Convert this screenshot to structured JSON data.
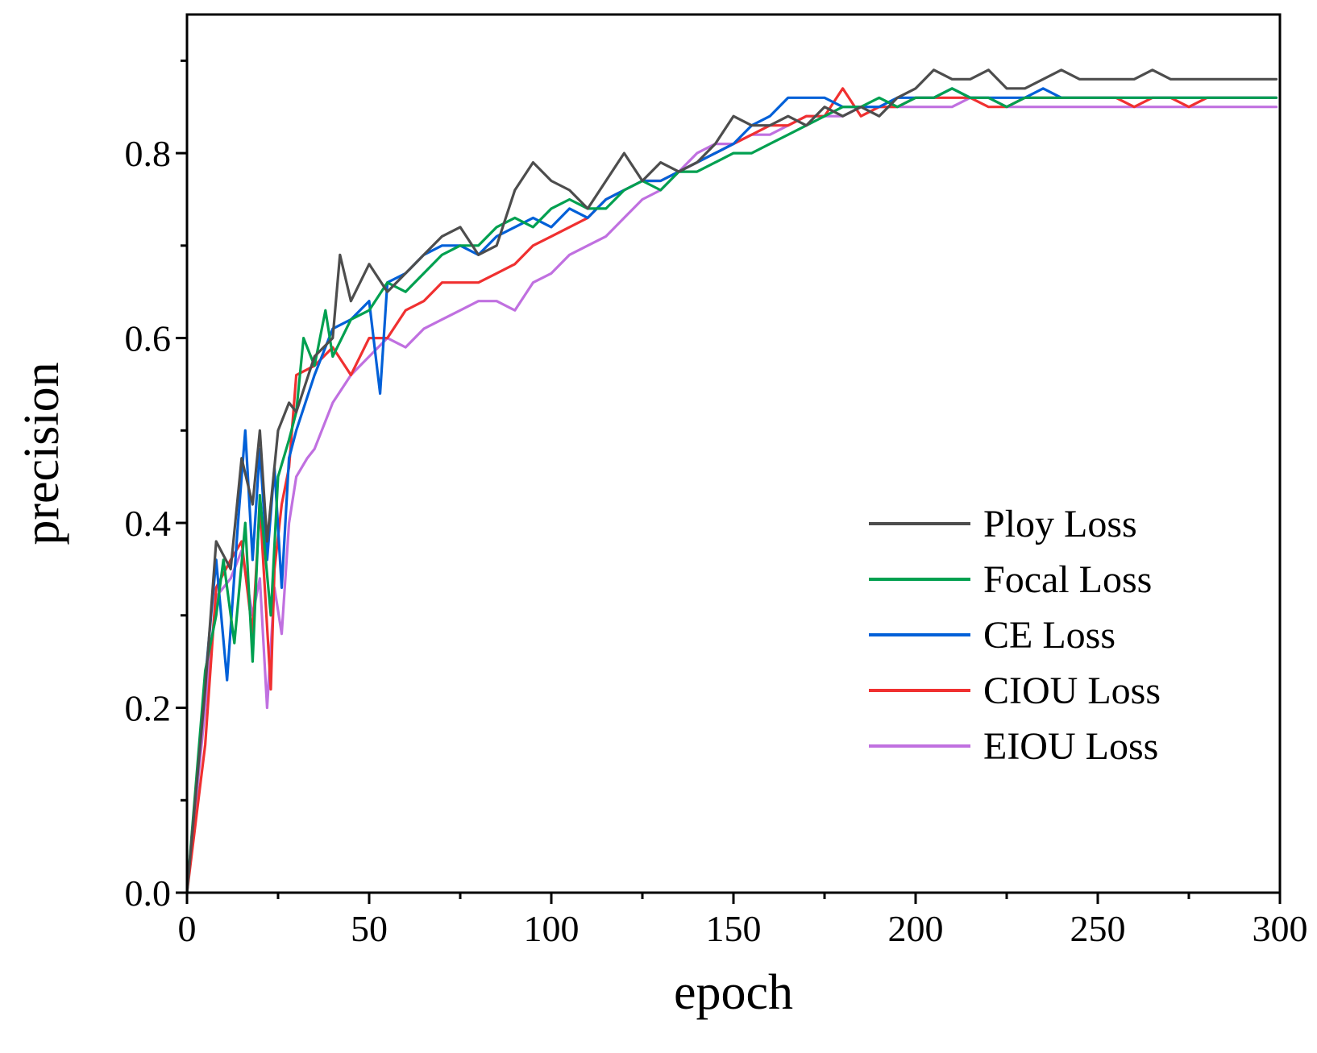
{
  "chart_data": {
    "type": "line",
    "title": "",
    "xlabel": "epoch",
    "ylabel": "precision",
    "xlim": [
      0,
      300
    ],
    "ylim": [
      0,
      0.95
    ],
    "xticks": [
      0,
      50,
      100,
      150,
      200,
      250,
      300
    ],
    "xtick_labels": [
      "0",
      "50",
      "100",
      "150",
      "200",
      "250",
      "300"
    ],
    "yticks": [
      0.0,
      0.2,
      0.4,
      0.6,
      0.8
    ],
    "ytick_labels": [
      "0.0",
      "0.2",
      "0.4",
      "0.6",
      "0.8"
    ],
    "grid": false,
    "legend_position": "center-right",
    "series": [
      {
        "name": "Ploy Loss",
        "color": "#4d4d4d",
        "x": [
          0,
          5,
          8,
          12,
          15,
          18,
          20,
          22,
          25,
          28,
          30,
          35,
          40,
          42,
          45,
          50,
          55,
          60,
          65,
          70,
          75,
          80,
          85,
          90,
          95,
          100,
          105,
          110,
          115,
          120,
          125,
          130,
          135,
          140,
          145,
          150,
          155,
          160,
          165,
          170,
          175,
          180,
          185,
          190,
          195,
          200,
          205,
          210,
          215,
          220,
          225,
          230,
          235,
          240,
          245,
          250,
          255,
          260,
          265,
          270,
          275,
          280,
          285,
          290,
          295,
          299
        ],
        "values": [
          0.0,
          0.22,
          0.38,
          0.35,
          0.47,
          0.42,
          0.5,
          0.38,
          0.5,
          0.53,
          0.52,
          0.58,
          0.6,
          0.69,
          0.64,
          0.68,
          0.65,
          0.67,
          0.69,
          0.71,
          0.72,
          0.69,
          0.7,
          0.76,
          0.79,
          0.77,
          0.76,
          0.74,
          0.77,
          0.8,
          0.77,
          0.79,
          0.78,
          0.79,
          0.81,
          0.84,
          0.83,
          0.83,
          0.84,
          0.83,
          0.85,
          0.84,
          0.85,
          0.84,
          0.86,
          0.87,
          0.89,
          0.88,
          0.88,
          0.89,
          0.87,
          0.87,
          0.88,
          0.89,
          0.88,
          0.88,
          0.88,
          0.88,
          0.89,
          0.88,
          0.88,
          0.88,
          0.88,
          0.88,
          0.88,
          0.88
        ]
      },
      {
        "name": "Focal Loss",
        "color": "#00a050",
        "x": [
          0,
          5,
          8,
          10,
          13,
          16,
          18,
          20,
          23,
          25,
          28,
          30,
          32,
          35,
          38,
          40,
          45,
          50,
          55,
          60,
          65,
          70,
          75,
          80,
          85,
          90,
          95,
          100,
          105,
          110,
          115,
          120,
          125,
          130,
          135,
          140,
          145,
          150,
          155,
          160,
          165,
          170,
          175,
          180,
          185,
          190,
          195,
          200,
          205,
          210,
          215,
          220,
          225,
          230,
          235,
          240,
          245,
          250,
          255,
          260,
          265,
          270,
          275,
          280,
          285,
          290,
          295,
          299
        ],
        "values": [
          0.0,
          0.24,
          0.3,
          0.36,
          0.27,
          0.4,
          0.25,
          0.43,
          0.3,
          0.45,
          0.49,
          0.52,
          0.6,
          0.57,
          0.63,
          0.58,
          0.62,
          0.63,
          0.66,
          0.65,
          0.67,
          0.69,
          0.7,
          0.7,
          0.72,
          0.73,
          0.72,
          0.74,
          0.75,
          0.74,
          0.74,
          0.76,
          0.77,
          0.76,
          0.78,
          0.78,
          0.79,
          0.8,
          0.8,
          0.81,
          0.82,
          0.83,
          0.84,
          0.85,
          0.85,
          0.86,
          0.85,
          0.86,
          0.86,
          0.87,
          0.86,
          0.86,
          0.85,
          0.86,
          0.86,
          0.86,
          0.86,
          0.86,
          0.86,
          0.86,
          0.86,
          0.86,
          0.86,
          0.86,
          0.86,
          0.86,
          0.86,
          0.86
        ]
      },
      {
        "name": "CE Loss",
        "color": "#0060d8",
        "x": [
          0,
          5,
          8,
          11,
          14,
          16,
          18,
          20,
          22,
          24,
          26,
          28,
          30,
          35,
          40,
          45,
          50,
          53,
          55,
          60,
          65,
          70,
          75,
          80,
          85,
          90,
          95,
          100,
          105,
          110,
          115,
          120,
          125,
          130,
          135,
          140,
          145,
          150,
          155,
          160,
          165,
          170,
          175,
          180,
          185,
          190,
          195,
          200,
          205,
          210,
          215,
          220,
          225,
          230,
          235,
          240,
          245,
          250,
          255,
          260,
          265,
          270,
          275,
          280,
          285,
          290,
          295,
          299
        ],
        "values": [
          0.0,
          0.23,
          0.36,
          0.23,
          0.4,
          0.5,
          0.36,
          0.48,
          0.36,
          0.46,
          0.33,
          0.47,
          0.5,
          0.56,
          0.61,
          0.62,
          0.64,
          0.54,
          0.66,
          0.67,
          0.69,
          0.7,
          0.7,
          0.69,
          0.71,
          0.72,
          0.73,
          0.72,
          0.74,
          0.73,
          0.75,
          0.76,
          0.77,
          0.77,
          0.78,
          0.79,
          0.8,
          0.81,
          0.83,
          0.84,
          0.86,
          0.86,
          0.86,
          0.85,
          0.85,
          0.85,
          0.86,
          0.86,
          0.86,
          0.87,
          0.86,
          0.86,
          0.86,
          0.86,
          0.87,
          0.86,
          0.86,
          0.86,
          0.86,
          0.86,
          0.86,
          0.86,
          0.86,
          0.86,
          0.86,
          0.86,
          0.86,
          0.86
        ]
      },
      {
        "name": "CIOU Loss",
        "color": "#f03030",
        "x": [
          0,
          5,
          8,
          12,
          15,
          18,
          20,
          23,
          24,
          26,
          28,
          30,
          35,
          40,
          45,
          50,
          55,
          60,
          65,
          70,
          75,
          80,
          85,
          90,
          95,
          100,
          105,
          110,
          115,
          120,
          125,
          130,
          135,
          140,
          145,
          150,
          155,
          160,
          165,
          170,
          175,
          180,
          185,
          190,
          195,
          200,
          205,
          210,
          215,
          220,
          225,
          230,
          235,
          240,
          245,
          250,
          255,
          260,
          265,
          270,
          275,
          280,
          285,
          290,
          295,
          299
        ],
        "values": [
          0.0,
          0.16,
          0.33,
          0.36,
          0.38,
          0.28,
          0.42,
          0.22,
          0.35,
          0.42,
          0.46,
          0.56,
          0.57,
          0.59,
          0.56,
          0.6,
          0.6,
          0.63,
          0.64,
          0.66,
          0.66,
          0.66,
          0.67,
          0.68,
          0.7,
          0.71,
          0.72,
          0.73,
          0.75,
          0.76,
          0.77,
          0.77,
          0.78,
          0.79,
          0.8,
          0.81,
          0.82,
          0.83,
          0.83,
          0.84,
          0.84,
          0.87,
          0.84,
          0.85,
          0.85,
          0.86,
          0.86,
          0.86,
          0.86,
          0.85,
          0.85,
          0.86,
          0.86,
          0.86,
          0.86,
          0.86,
          0.86,
          0.85,
          0.86,
          0.86,
          0.85,
          0.86,
          0.86,
          0.86,
          0.86,
          0.86
        ]
      },
      {
        "name": "EIOU Loss",
        "color": "#c070e0",
        "x": [
          0,
          5,
          8,
          12,
          15,
          18,
          20,
          22,
          24,
          26,
          28,
          30,
          33,
          35,
          40,
          45,
          50,
          55,
          60,
          65,
          70,
          75,
          80,
          85,
          90,
          95,
          100,
          105,
          110,
          115,
          120,
          125,
          130,
          135,
          140,
          145,
          150,
          155,
          160,
          165,
          170,
          175,
          180,
          185,
          190,
          195,
          200,
          205,
          210,
          215,
          220,
          225,
          230,
          235,
          240,
          245,
          250,
          255,
          260,
          265,
          270,
          275,
          280,
          285,
          290,
          295,
          299
        ],
        "values": [
          0.0,
          0.2,
          0.32,
          0.34,
          0.37,
          0.3,
          0.34,
          0.2,
          0.33,
          0.28,
          0.4,
          0.45,
          0.47,
          0.48,
          0.53,
          0.56,
          0.58,
          0.6,
          0.59,
          0.61,
          0.62,
          0.63,
          0.64,
          0.64,
          0.63,
          0.66,
          0.67,
          0.69,
          0.7,
          0.71,
          0.73,
          0.75,
          0.76,
          0.78,
          0.8,
          0.81,
          0.81,
          0.82,
          0.82,
          0.83,
          0.84,
          0.84,
          0.84,
          0.85,
          0.85,
          0.85,
          0.85,
          0.85,
          0.85,
          0.86,
          0.86,
          0.85,
          0.85,
          0.85,
          0.85,
          0.85,
          0.85,
          0.85,
          0.85,
          0.85,
          0.85,
          0.85,
          0.85,
          0.85,
          0.85,
          0.85,
          0.85
        ]
      }
    ]
  }
}
